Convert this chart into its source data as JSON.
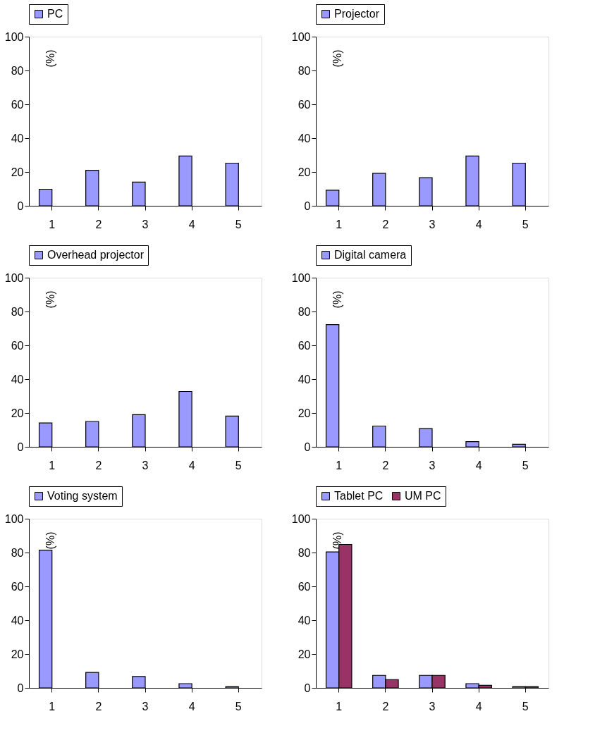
{
  "chart_data": [
    {
      "type": "bar",
      "ylabel": "(%)",
      "categories": [
        "1",
        "2",
        "3",
        "4",
        "5"
      ],
      "ylim": [
        0,
        100
      ],
      "yticks": [
        0,
        20,
        40,
        60,
        80,
        100
      ],
      "legend": "top",
      "series": [
        {
          "name": "PC",
          "color": "#9999ff",
          "values": [
            9.8,
            21,
            14,
            29.4,
            25.2
          ]
        }
      ]
    },
    {
      "type": "bar",
      "ylabel": "(%)",
      "categories": [
        "1",
        "2",
        "3",
        "4",
        "5"
      ],
      "ylim": [
        0,
        100
      ],
      "yticks": [
        0,
        20,
        40,
        60,
        80,
        100
      ],
      "legend": "top",
      "series": [
        {
          "name": "Projector",
          "color": "#9999ff",
          "values": [
            9.2,
            19.2,
            16.6,
            29.4,
            25.2
          ]
        }
      ]
    },
    {
      "type": "bar",
      "ylabel": "(%)",
      "categories": [
        "1",
        "2",
        "3",
        "4",
        "5"
      ],
      "ylim": [
        0,
        100
      ],
      "yticks": [
        0,
        20,
        40,
        60,
        80,
        100
      ],
      "legend": "top",
      "series": [
        {
          "name": "Overhead projector",
          "color": "#9999ff",
          "values": [
            14.1,
            15,
            19,
            32.7,
            18.2
          ]
        }
      ]
    },
    {
      "type": "bar",
      "ylabel": "(%)",
      "categories": [
        "1",
        "2",
        "3",
        "4",
        "5"
      ],
      "ylim": [
        0,
        100
      ],
      "yticks": [
        0,
        20,
        40,
        60,
        80,
        100
      ],
      "legend": "top",
      "series": [
        {
          "name": "Digital camera",
          "color": "#9999ff",
          "values": [
            72.2,
            12.3,
            10.8,
            3.1,
            1.5
          ]
        }
      ]
    },
    {
      "type": "bar",
      "ylabel": "(%)",
      "categories": [
        "1",
        "2",
        "3",
        "4",
        "5"
      ],
      "ylim": [
        0,
        100
      ],
      "yticks": [
        0,
        20,
        40,
        60,
        80,
        100
      ],
      "legend": "top",
      "series": [
        {
          "name": "Voting system",
          "color": "#9999ff",
          "values": [
            81.4,
            9.1,
            6.7,
            2.5,
            0.7
          ]
        }
      ]
    },
    {
      "type": "bar",
      "ylabel": "(%)",
      "categories": [
        "1",
        "2",
        "3",
        "4",
        "5"
      ],
      "ylim": [
        0,
        100
      ],
      "yticks": [
        0,
        20,
        40,
        60,
        80,
        100
      ],
      "legend": "top",
      "series": [
        {
          "name": "Tablet PC",
          "color": "#9999ff",
          "values": [
            80.4,
            7.4,
            7.4,
            2.5,
            0.7
          ]
        },
        {
          "name": "UM PC",
          "color": "#993366",
          "values": [
            84.8,
            4.9,
            7.4,
            1.5,
            0.7
          ]
        }
      ]
    }
  ]
}
